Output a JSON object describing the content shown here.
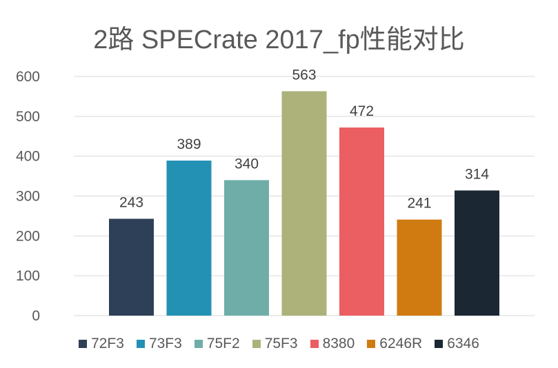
{
  "chart_data": {
    "type": "bar",
    "title": "2路 SPECrate 2017_fp性能对比",
    "categories": [
      "72F3",
      "73F3",
      "75F2",
      "75F3",
      "8380",
      "6246R",
      "6346"
    ],
    "series": [
      {
        "name": "72F3",
        "value": 243,
        "color": "#2E4057"
      },
      {
        "name": "73F3",
        "value": 389,
        "color": "#2391B4"
      },
      {
        "name": "75F2",
        "value": 340,
        "color": "#6FAEA8"
      },
      {
        "name": "75F3",
        "value": 563,
        "color": "#ACB27A"
      },
      {
        "name": "8380",
        "value": 472,
        "color": "#EB5E62"
      },
      {
        "name": "6246R",
        "value": 241,
        "color": "#D07B12"
      },
      {
        "name": "6346",
        "value": 314,
        "color": "#1B2733"
      }
    ],
    "ylim": [
      0,
      600
    ],
    "yticks": [
      0,
      100,
      200,
      300,
      400,
      500,
      600
    ],
    "grid": true,
    "legend": "bottom"
  }
}
